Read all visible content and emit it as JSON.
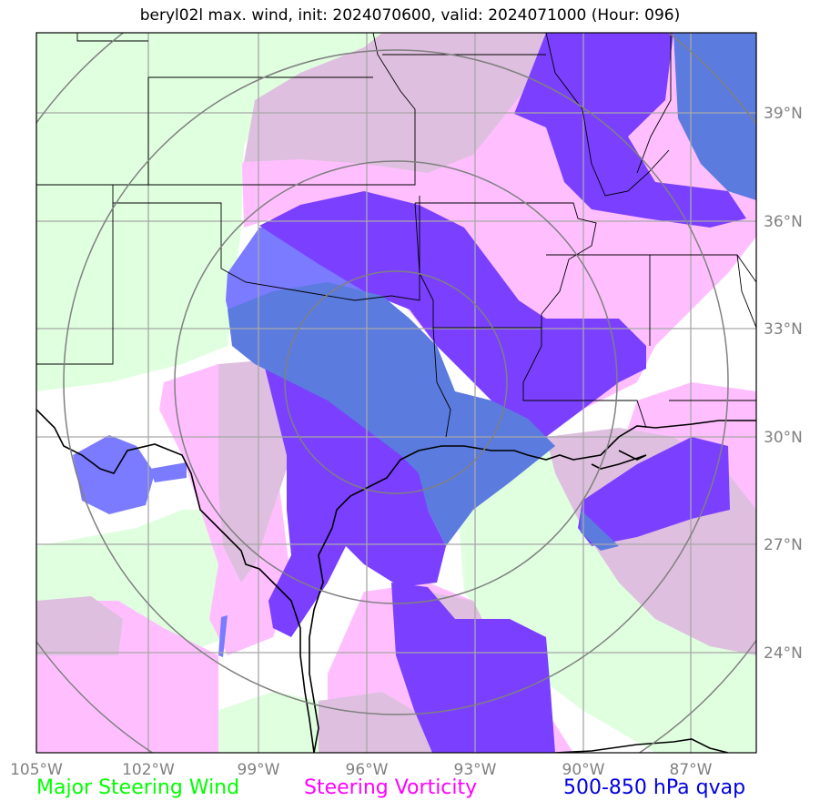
{
  "title": "beryl02l max. wind, init: 2024070600, valid: 2024071000 (Hour: 096)",
  "lon_ticks": [
    "105°W",
    "102°W",
    "99°W",
    "96°W",
    "93°W",
    "90°W",
    "87°W"
  ],
  "lat_ticks": [
    "24°N",
    "27°N",
    "30°N",
    "33°N",
    "36°N",
    "39°N"
  ],
  "legend": {
    "steering_wind": "Major Steering Wind",
    "steering_vorticity": "Steering Vorticity",
    "qvap": "500-850 hPa qvap"
  },
  "colors": {
    "steering_wind": "#00ff00",
    "steering_vorticity": "#ff00ff",
    "qvap": "#0000e0",
    "wind_fill": "#dfffdf",
    "vorticity_fill": "#ffbfff",
    "overlap_fill": "#dfbfdf",
    "qvap_fill_strong": "#7b3fff",
    "qvap_fill_light": "#7b7bff",
    "grid": "#a8a8a8",
    "range_rings": "#808080"
  },
  "map_extent": {
    "lon": [
      -105,
      -85
    ],
    "lat": [
      21.4,
      40.6
    ],
    "grid_lon_step": 3,
    "grid_lat_step": 3
  },
  "range_rings_deg": [
    3,
    6,
    9,
    12
  ]
}
